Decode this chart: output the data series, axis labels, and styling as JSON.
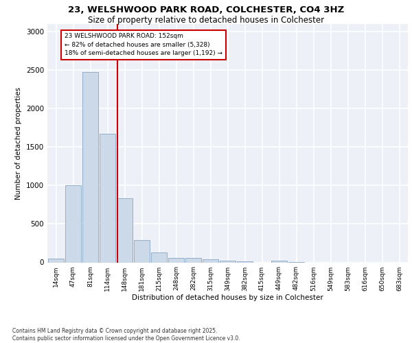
{
  "title_line1": "23, WELSHWOOD PARK ROAD, COLCHESTER, CO4 3HZ",
  "title_line2": "Size of property relative to detached houses in Colchester",
  "xlabel": "Distribution of detached houses by size in Colchester",
  "ylabel": "Number of detached properties",
  "categories": [
    "14sqm",
    "47sqm",
    "81sqm",
    "114sqm",
    "148sqm",
    "181sqm",
    "215sqm",
    "248sqm",
    "282sqm",
    "315sqm",
    "349sqm",
    "382sqm",
    "415sqm",
    "449sqm",
    "482sqm",
    "516sqm",
    "549sqm",
    "583sqm",
    "616sqm",
    "650sqm",
    "683sqm"
  ],
  "values": [
    50,
    1005,
    2480,
    1670,
    830,
    290,
    130,
    60,
    55,
    40,
    25,
    10,
    0,
    25,
    5,
    0,
    0,
    0,
    0,
    0,
    0
  ],
  "bar_color": "#ccd9e8",
  "bar_edge_color": "#7799bb",
  "highlight_line_color": "#cc0000",
  "annotation_box_text": "23 WELSHWOOD PARK ROAD: 152sqm\n← 82% of detached houses are smaller (5,328)\n18% of semi-detached houses are larger (1,192) →",
  "annotation_box_color": "#cc0000",
  "ylim": [
    0,
    3100
  ],
  "yticks": [
    0,
    500,
    1000,
    1500,
    2000,
    2500,
    3000
  ],
  "background_color": "#edf1f7",
  "grid_color": "#ffffff",
  "footer_text": "Contains HM Land Registry data © Crown copyright and database right 2025.\nContains public sector information licensed under the Open Government Licence v3.0.",
  "figsize": [
    6.0,
    5.0
  ],
  "dpi": 100
}
